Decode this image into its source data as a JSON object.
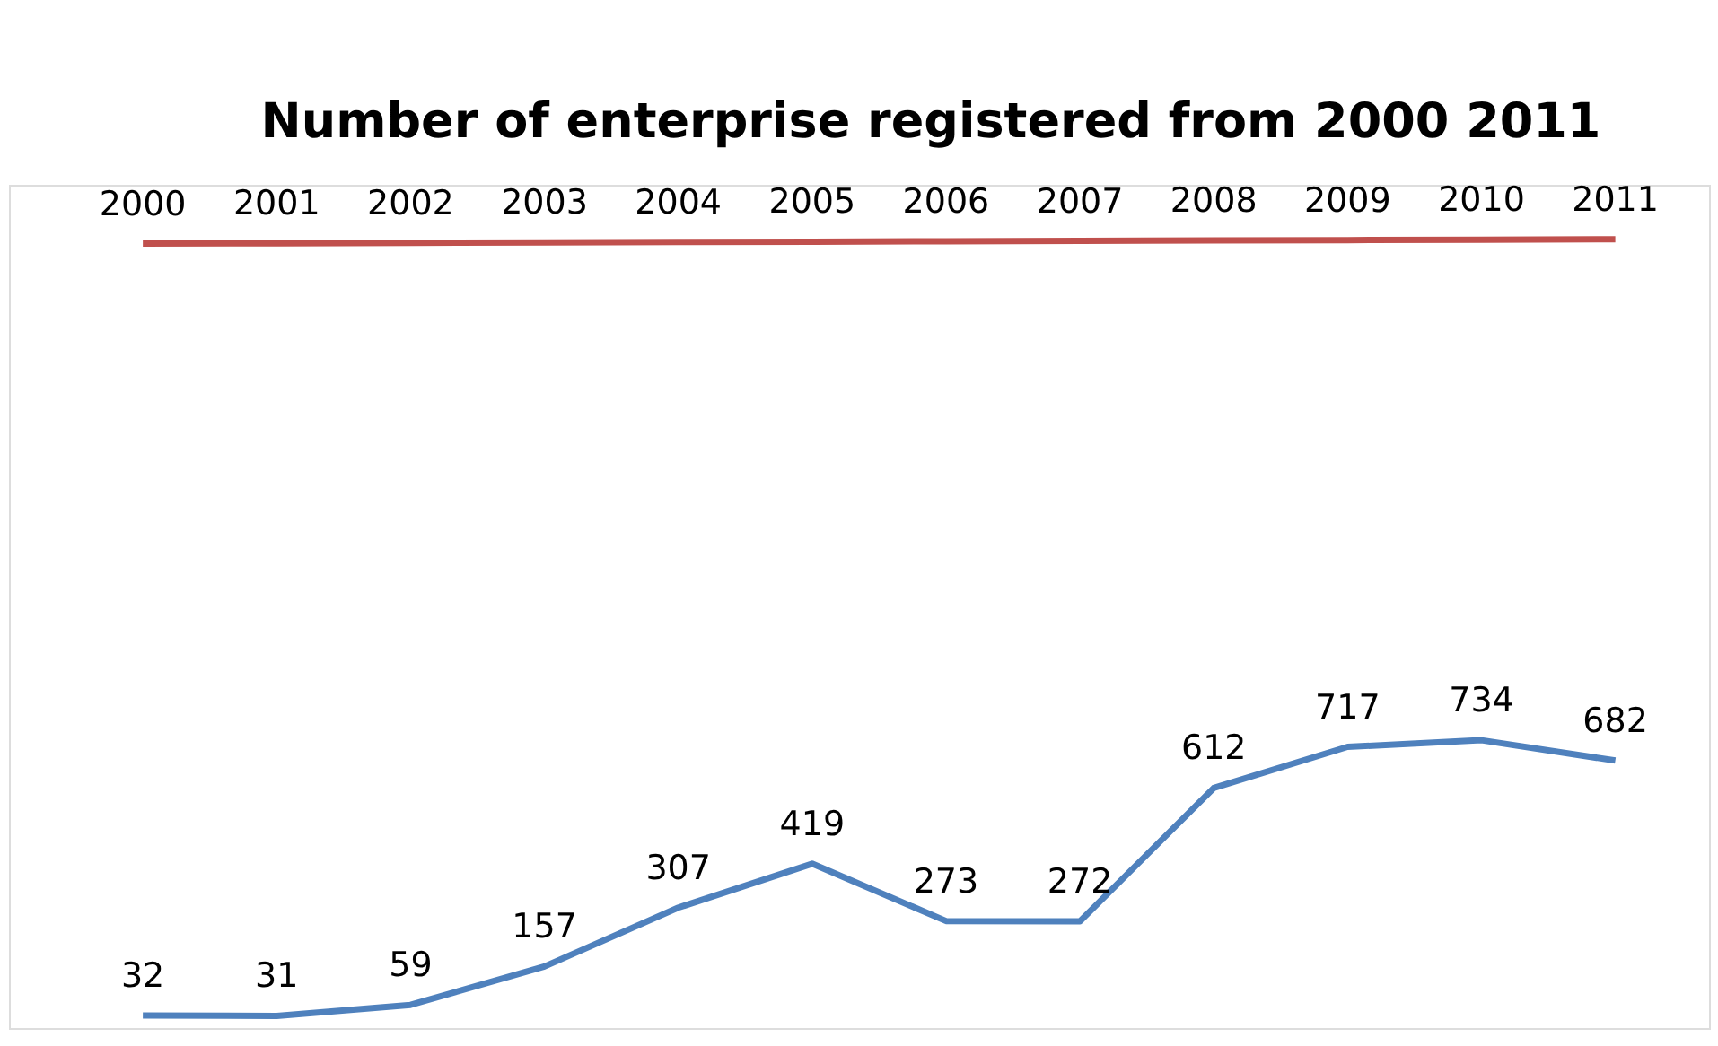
{
  "chart_data": {
    "type": "line",
    "title": "Number of enterprise registered from 2000 2011",
    "categories": [
      null,
      null,
      null,
      null,
      null,
      null,
      null,
      null,
      null,
      null,
      null,
      null
    ],
    "series": [
      {
        "color": "#c0504d",
        "values": [
          2000,
          2001,
          2002,
          2003,
          2004,
          2005,
          2006,
          2007,
          2008,
          2009,
          2010,
          2011
        ]
      },
      {
        "color": "#4f81bd",
        "values": [
          32,
          31,
          59,
          157,
          307,
          419,
          273,
          272,
          612,
          717,
          734,
          682
        ]
      }
    ],
    "ylim": [
      0,
      2150
    ],
    "tick_labels": false,
    "data_labels": true,
    "grid": false,
    "legend": false,
    "marker": "none",
    "line_style": "solid"
  }
}
